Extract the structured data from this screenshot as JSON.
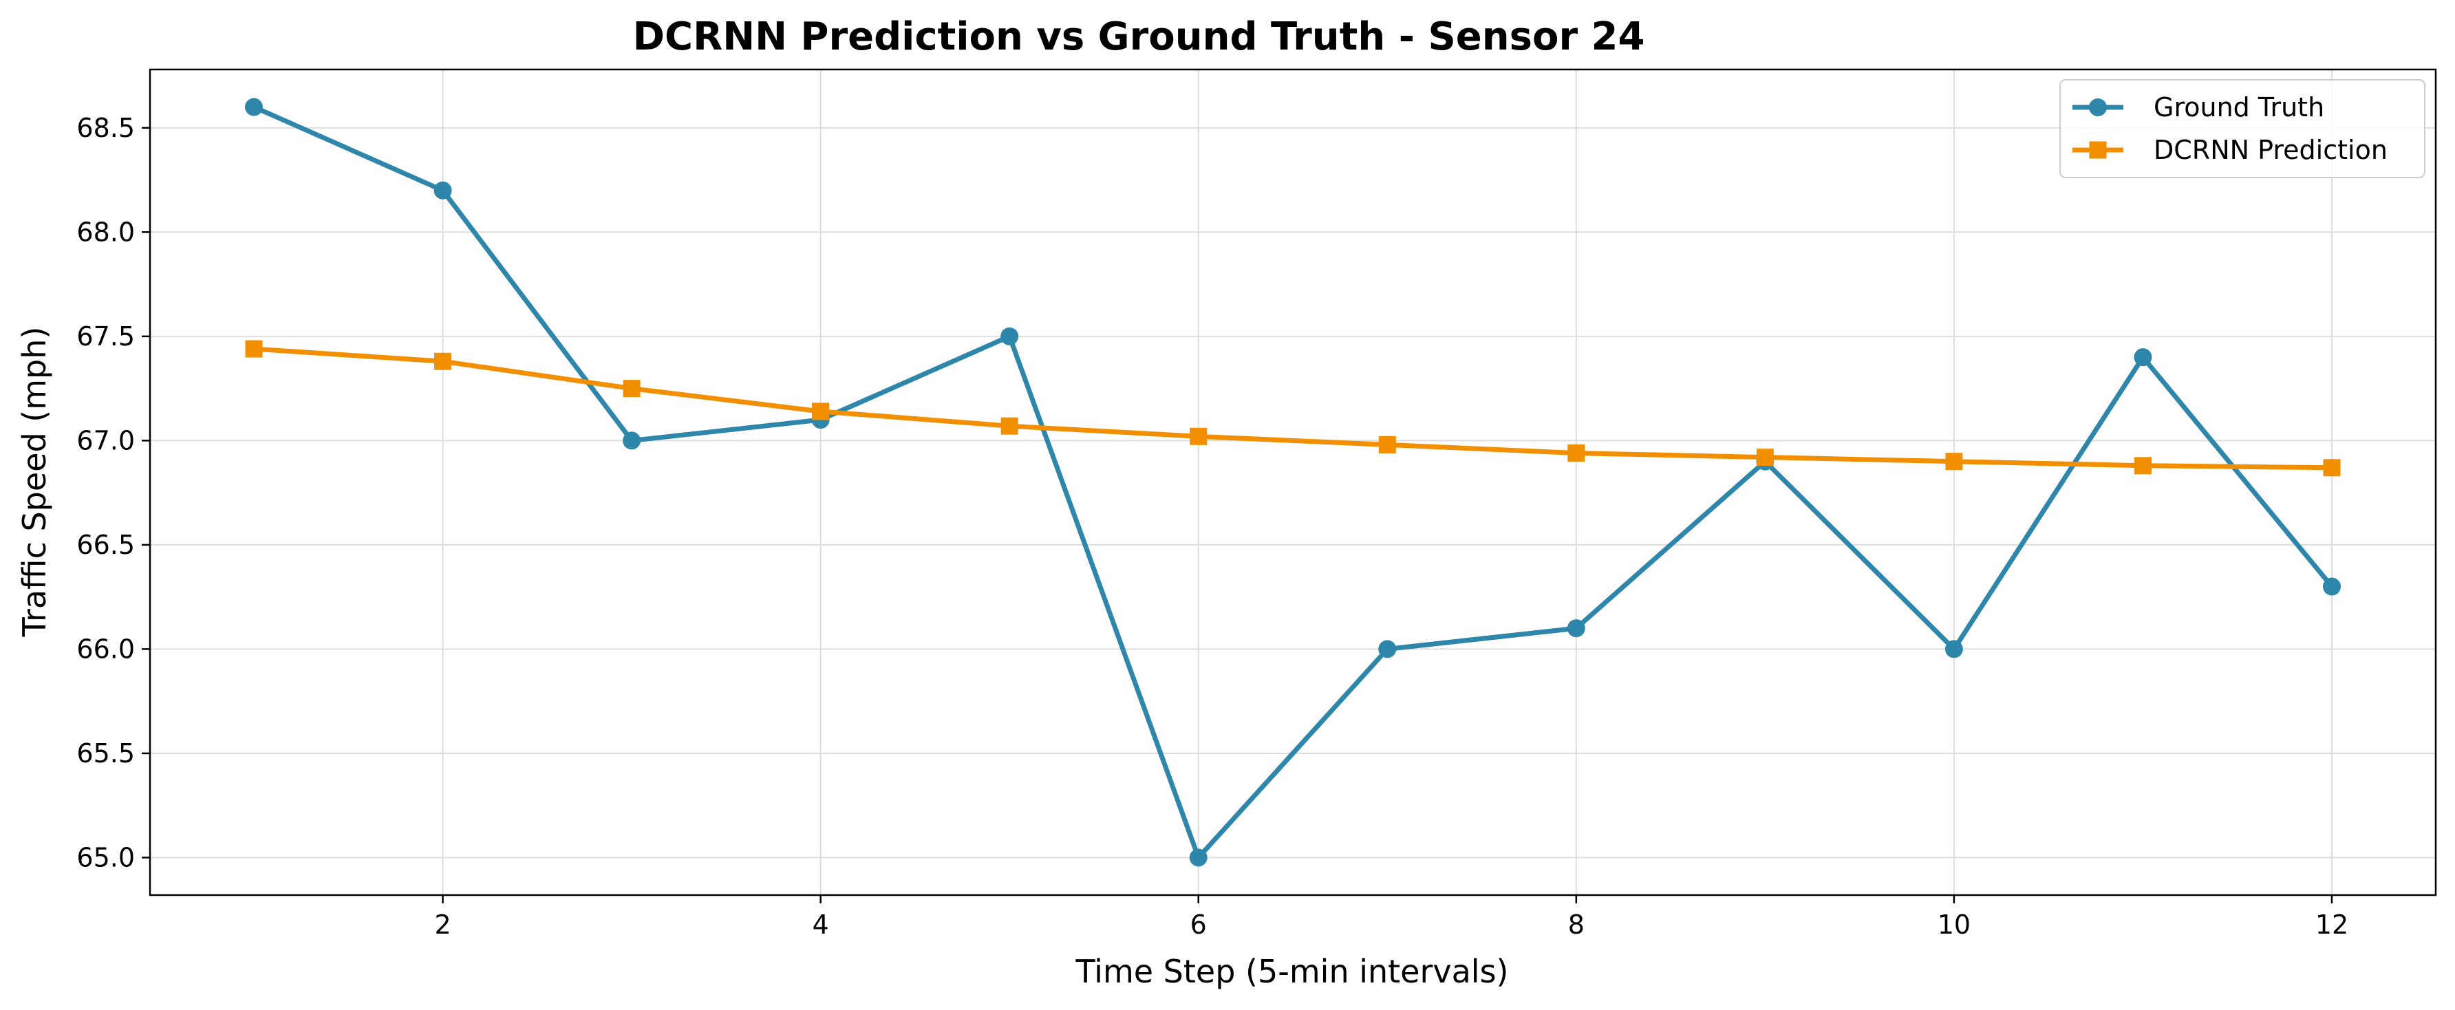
{
  "chart_data": {
    "type": "line",
    "title": "DCRNN Prediction vs Ground Truth - Sensor 24",
    "xlabel": "Time Step (5-min intervals)",
    "ylabel": "Traffic Speed (mph)",
    "xlim": [
      0.45,
      12.55
    ],
    "ylim": [
      64.82,
      68.78
    ],
    "xticks": [
      2,
      4,
      6,
      8,
      10,
      12
    ],
    "xtick_labels": [
      "2",
      "4",
      "6",
      "8",
      "10",
      "12"
    ],
    "yticks": [
      65.0,
      65.5,
      66.0,
      66.5,
      67.0,
      67.5,
      68.0,
      68.5
    ],
    "ytick_labels": [
      "65.0",
      "65.5",
      "66.0",
      "66.5",
      "67.0",
      "67.5",
      "68.0",
      "68.5"
    ],
    "grid": true,
    "legend_position": "top-right",
    "x": [
      1,
      2,
      3,
      4,
      5,
      6,
      7,
      8,
      9,
      10,
      11,
      12
    ],
    "series": [
      {
        "name": "Ground Truth",
        "color": "#2e86ab",
        "marker": "circle",
        "values": [
          68.6,
          68.2,
          67.0,
          67.1,
          67.5,
          65.0,
          66.0,
          66.1,
          66.9,
          66.0,
          67.4,
          66.3
        ]
      },
      {
        "name": "DCRNN Prediction",
        "color": "#f18f01",
        "marker": "square",
        "values": [
          67.44,
          67.38,
          67.25,
          67.14,
          67.07,
          67.02,
          66.98,
          66.94,
          66.92,
          66.9,
          66.88,
          66.87
        ]
      }
    ]
  }
}
